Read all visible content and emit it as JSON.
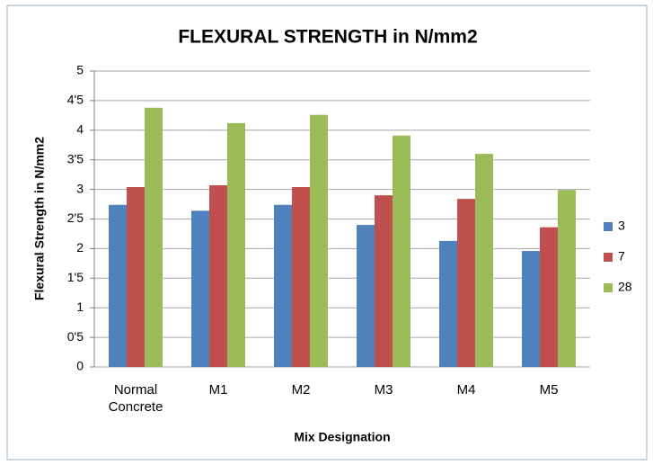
{
  "chart_data": {
    "type": "bar",
    "title": "FLEXURAL STRENGTH in N/mm2",
    "xlabel": "Mix Designation",
    "ylabel": "Flexural Strength in N/mm2",
    "categories": [
      "Normal Concrete",
      "M1",
      "M2",
      "M3",
      "M4",
      "M5"
    ],
    "series": [
      {
        "name": "3",
        "color": "#4f81bd",
        "values": [
          2.74,
          2.64,
          2.74,
          2.4,
          2.13,
          1.96
        ]
      },
      {
        "name": "7",
        "color": "#c0504d",
        "values": [
          3.04,
          3.07,
          3.04,
          2.9,
          2.84,
          2.36
        ]
      },
      {
        "name": "28",
        "color": "#9bbb59",
        "values": [
          4.38,
          4.12,
          4.26,
          3.91,
          3.6,
          2.99
        ]
      }
    ],
    "ylim": [
      0,
      5
    ],
    "yticks": [
      0,
      {
        "value": 0.5,
        "label": "0'5"
      },
      1,
      {
        "value": 1.5,
        "label": "1'5"
      },
      2,
      {
        "value": 2.5,
        "label": "2'5"
      },
      3,
      {
        "value": 3.5,
        "label": "3'5"
      },
      4,
      {
        "value": 4.5,
        "label": "4'5"
      },
      5
    ],
    "grid": true,
    "legend": "right"
  }
}
